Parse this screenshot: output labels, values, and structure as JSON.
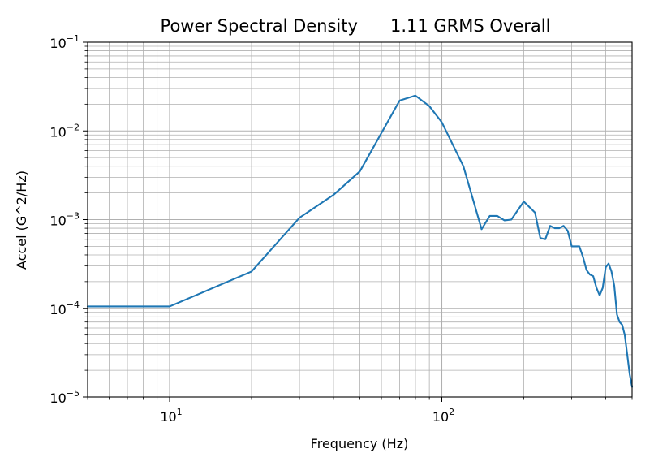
{
  "chart_data": {
    "type": "line",
    "title": "Power Spectral Density      1.11 GRMS Overall",
    "xlabel": "Frequency (Hz)",
    "ylabel": "Accel (G^2/Hz)",
    "xscale": "log",
    "yscale": "log",
    "xlim": [
      5,
      500
    ],
    "ylim": [
      1e-05,
      0.1
    ],
    "grid": "major-and-minor",
    "line_color": "#1f77b4",
    "x_ticks": [
      {
        "value": 10,
        "base": "10",
        "exp": "1"
      },
      {
        "value": 100,
        "base": "10",
        "exp": "2"
      }
    ],
    "y_ticks": [
      {
        "value": 1e-05,
        "base": "10",
        "exp": "−5"
      },
      {
        "value": 0.0001,
        "base": "10",
        "exp": "−4"
      },
      {
        "value": 0.001,
        "base": "10",
        "exp": "−3"
      },
      {
        "value": 0.01,
        "base": "10",
        "exp": "−2"
      },
      {
        "value": 0.1,
        "base": "10",
        "exp": "−1"
      }
    ],
    "series": [
      {
        "x": [
          5,
          10,
          20,
          30,
          40,
          50,
          70,
          80,
          90,
          100,
          120,
          140,
          150,
          160,
          170,
          180,
          200,
          220,
          230,
          240,
          250,
          260,
          270,
          280,
          290,
          300,
          320,
          330,
          340,
          350,
          360,
          370,
          380,
          390,
          400,
          410,
          420,
          430,
          440,
          450,
          460,
          470,
          480,
          490,
          500
        ],
        "y": [
          0.000105,
          0.000105,
          0.00026,
          0.00105,
          0.0019,
          0.0035,
          0.022,
          0.025,
          0.019,
          0.0125,
          0.004,
          0.00078,
          0.0011,
          0.0011,
          0.00098,
          0.001,
          0.0016,
          0.0012,
          0.00062,
          0.0006,
          0.00085,
          0.0008,
          0.0008,
          0.00085,
          0.00075,
          0.0005,
          0.0005,
          0.00038,
          0.00027,
          0.00024,
          0.00023,
          0.00017,
          0.00014,
          0.00017,
          0.00029,
          0.00032,
          0.00026,
          0.00018,
          8.5e-05,
          7e-05,
          6.5e-05,
          5e-05,
          3e-05,
          1.8e-05,
          1.3e-05
        ]
      }
    ]
  }
}
